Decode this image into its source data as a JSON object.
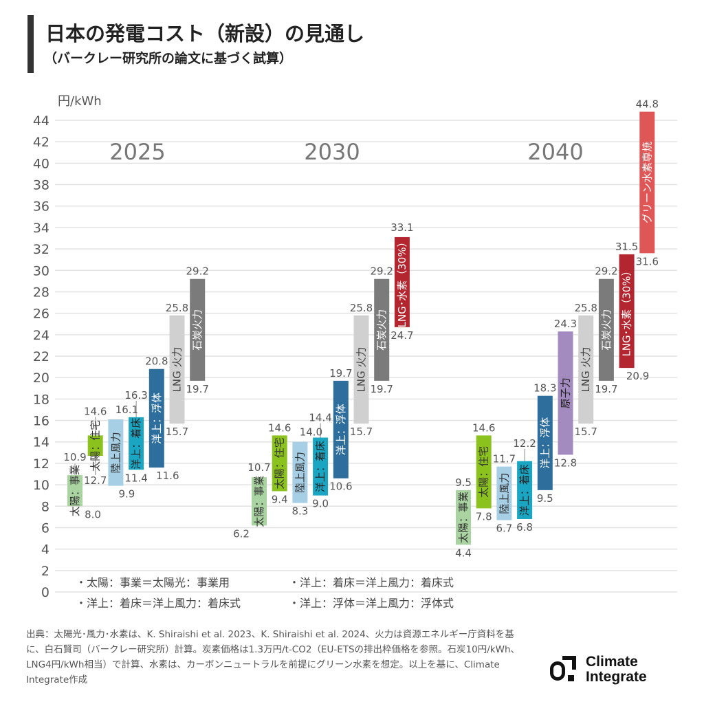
{
  "title": "日本の発電コスト（新設）の見通し",
  "subtitle": "（バークレー研究所の論文に基づく試算）",
  "chart_data": {
    "type": "bar",
    "subtype": "floating-range",
    "ylabel": "円/kWh",
    "ylim": [
      0,
      44
    ],
    "yticks": [
      0,
      2,
      4,
      6,
      8,
      10,
      12,
      14,
      16,
      18,
      20,
      22,
      24,
      26,
      28,
      30,
      32,
      34,
      36,
      38,
      40,
      42,
      44
    ],
    "grid": true,
    "groups": [
      {
        "year": "2025",
        "bars": [
          {
            "name": "太陽：事業",
            "low": 8.0,
            "high": 10.9,
            "color": "#a9d3a0",
            "text": "#333"
          },
          {
            "name": "太陽：住宅",
            "low": 12.7,
            "high": 14.6,
            "color": "#8cc21e",
            "text": "#333"
          },
          {
            "name": "陸上風力",
            "low": 9.9,
            "high": 16.1,
            "color": "#a6cfe5",
            "text": "#333"
          },
          {
            "name": "洋上：着床",
            "low": 11.4,
            "high": 16.3,
            "color": "#1aa5c3",
            "text": "#222"
          },
          {
            "name": "洋上：浮体",
            "low": 11.6,
            "high": 20.8,
            "color": "#2e6e9d",
            "text": "#fff"
          },
          {
            "name": "LNG 火力",
            "low": 15.7,
            "high": 25.8,
            "color": "#d0d0d0",
            "text": "#444"
          },
          {
            "name": "石炭火力",
            "low": 19.7,
            "high": 29.2,
            "color": "#7b7b7b",
            "text": "#fff"
          }
        ]
      },
      {
        "year": "2030",
        "bars": [
          {
            "name": "太陽：事業",
            "low": 6.2,
            "high": 10.7,
            "color": "#a9d3a0",
            "text": "#333"
          },
          {
            "name": "太陽：住宅",
            "low": 9.4,
            "high": 14.6,
            "color": "#8cc21e",
            "text": "#333"
          },
          {
            "name": "陸上風力",
            "low": 8.3,
            "high": 14.0,
            "color": "#a6cfe5",
            "text": "#333"
          },
          {
            "name": "洋上：着床",
            "low": 9.0,
            "high": 14.4,
            "color": "#1aa5c3",
            "text": "#222"
          },
          {
            "name": "洋上：浮体",
            "low": 10.6,
            "high": 19.7,
            "color": "#2e6e9d",
            "text": "#fff"
          },
          {
            "name": "LNG 火力",
            "low": 15.7,
            "high": 25.8,
            "color": "#d0d0d0",
            "text": "#444"
          },
          {
            "name": "石炭火力",
            "low": 19.7,
            "high": 29.2,
            "color": "#7b7b7b",
            "text": "#fff"
          },
          {
            "name": "LNG･水素（30%）",
            "low": 24.7,
            "high": 33.1,
            "color": "#b3262f",
            "text": "#fff"
          }
        ]
      },
      {
        "year": "2040",
        "bars": [
          {
            "name": "太陽：事業",
            "low": 4.4,
            "high": 9.5,
            "color": "#a9d3a0",
            "text": "#333"
          },
          {
            "name": "太陽：住宅",
            "low": 7.8,
            "high": 14.6,
            "color": "#8cc21e",
            "text": "#333"
          },
          {
            "name": "陸上風力",
            "low": 6.7,
            "high": 11.7,
            "color": "#a6cfe5",
            "text": "#333"
          },
          {
            "name": "洋上：着床",
            "low": 6.8,
            "high": 12.2,
            "color": "#1aa5c3",
            "text": "#222"
          },
          {
            "name": "洋上：浮体",
            "low": 9.5,
            "high": 18.3,
            "color": "#2e6e9d",
            "text": "#fff"
          },
          {
            "name": "原子力",
            "low": 12.8,
            "high": 24.3,
            "color": "#a38bbf",
            "text": "#222"
          },
          {
            "name": "LNG 火力",
            "low": 15.7,
            "high": 25.8,
            "color": "#d0d0d0",
            "text": "#444"
          },
          {
            "name": "石炭火力",
            "low": 19.7,
            "high": 29.2,
            "color": "#7b7b7b",
            "text": "#fff"
          },
          {
            "name": "LNG･水素（30%）",
            "low": 20.9,
            "high": 31.5,
            "color": "#b3262f",
            "text": "#fff"
          },
          {
            "name": "グリーン水素専焼",
            "low": 31.6,
            "high": 44.8,
            "color": "#df5656",
            "text": "#fff"
          }
        ]
      }
    ]
  },
  "notes": [
    "・太陽：事業＝太陽光：事業用",
    "・洋上：着床＝洋上風力：着床式",
    "・洋上：着床＝洋上風力：着床式",
    "・洋上：浮体＝洋上風力：浮体式"
  ],
  "source": "出典：太陽光･風力･水素は、K. Shiraishi et al. 2023、K. Shiraishi et al. 2024、火力は資源エネルギー庁資料を基に、白石賢司（バークレー研究所）計算。炭素価格は1.3万円/t-CO2（EU-ETSの排出枠価格を参照。石炭10円/kWh、LNG4円/kWh相当）で計算、水素は、カーボンニュートラルを前提にグリーン水素を想定。以上を基に、Climate Integrate作成",
  "logo": {
    "line1": "Climate",
    "line2": "Integrate"
  }
}
